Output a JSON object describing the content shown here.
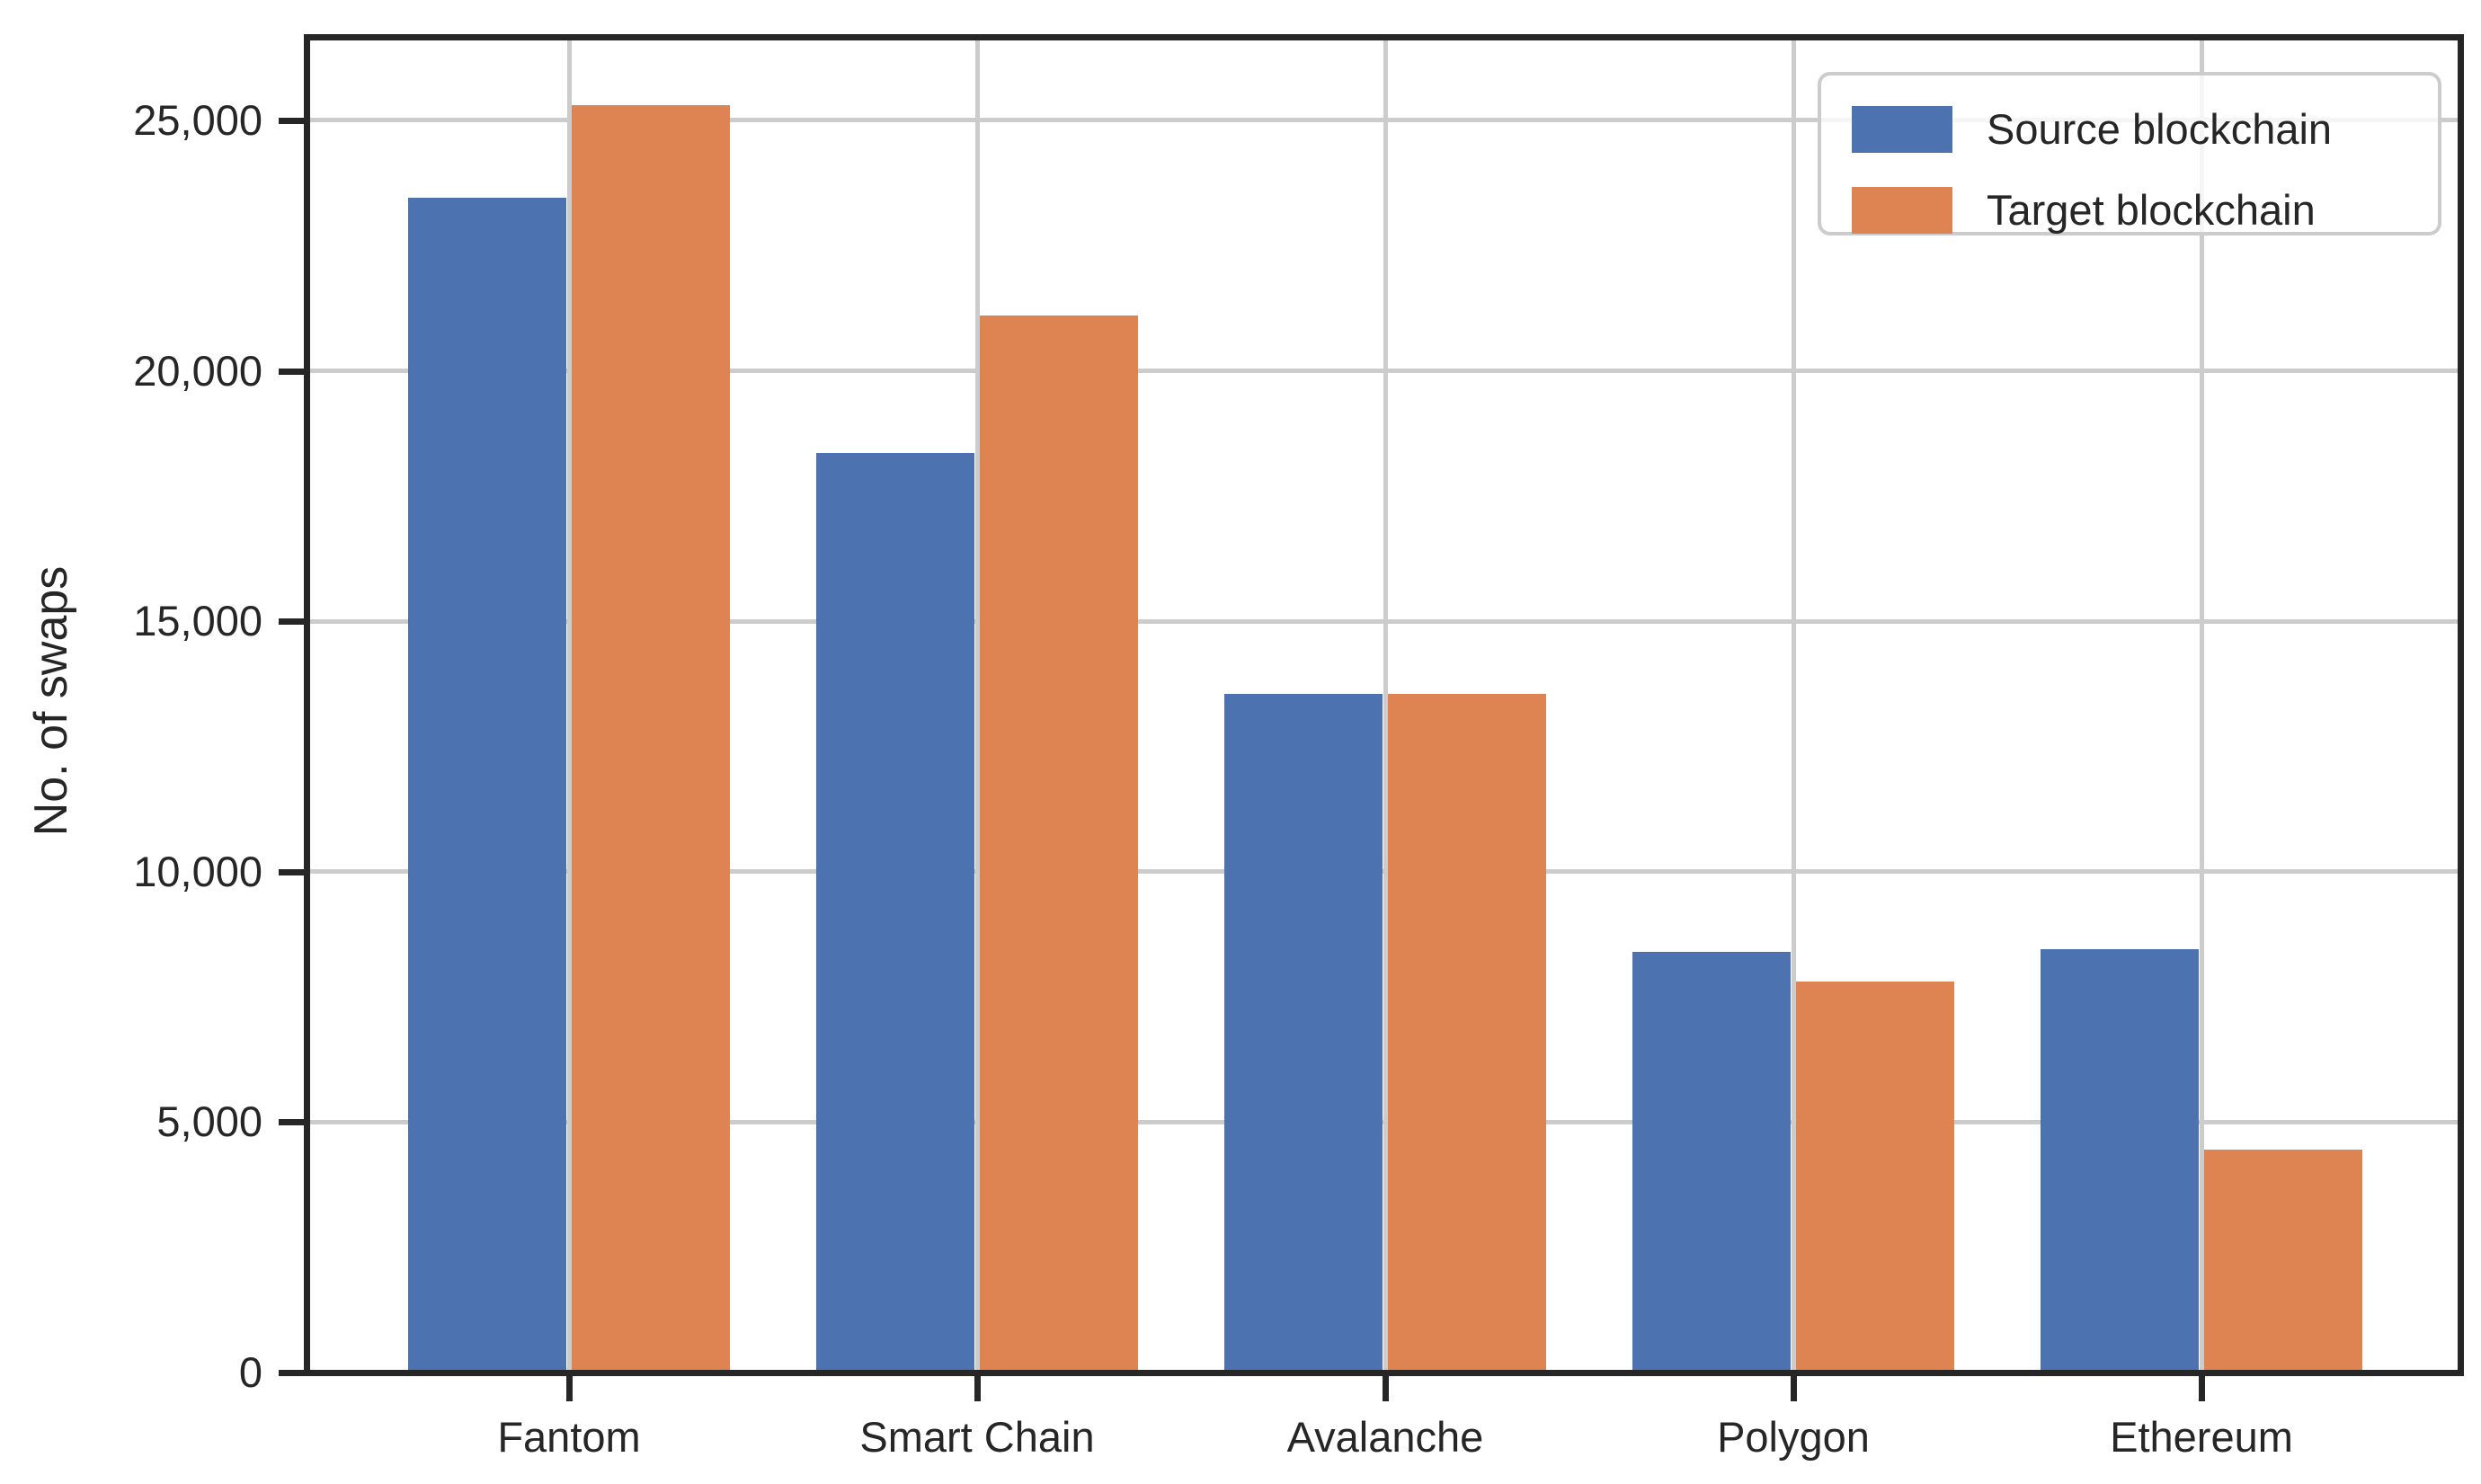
{
  "figure": {
    "background": "#ffffff"
  },
  "chart_data": {
    "type": "bar",
    "title": "",
    "categories": [
      "Fantom",
      "Smart Chain",
      "Avalanche",
      "Polygon",
      "Ethereum"
    ],
    "series": [
      {
        "name": "Source blockchain",
        "color": "#4c72b0",
        "values": [
          23450,
          18350,
          13550,
          8400,
          8450
        ]
      },
      {
        "name": "Target blockchain",
        "color": "#dd8452",
        "values": [
          25300,
          21100,
          13550,
          7800,
          4450
        ]
      }
    ],
    "xlabel": "",
    "ylabel": "No. of swaps",
    "ylim": [
      0,
      26650
    ],
    "yticks": [
      0,
      5000,
      10000,
      15000,
      20000,
      25000
    ],
    "ytick_labels": [
      "0",
      "5,000",
      "10,000",
      "15,000",
      "20,000",
      "25,000"
    ],
    "grid": true,
    "legend": {
      "position": "upper-right"
    },
    "colors": {
      "grid": "#cccccc",
      "spine": "#262626",
      "text": "#262626"
    }
  }
}
